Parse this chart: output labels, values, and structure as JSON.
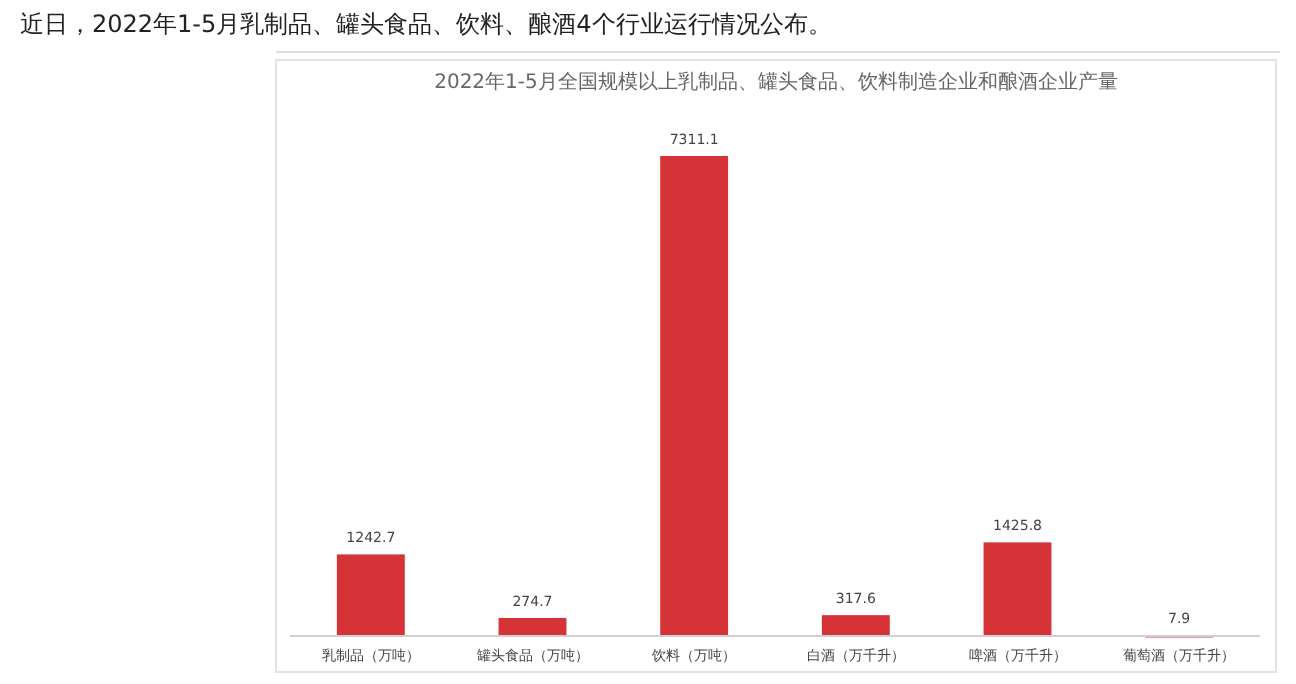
{
  "chart_data": {
    "type": "bar",
    "title": "2022年1-5月全国规模以上乳制品、罐头食品、饮料制造企业和酿酒企业产量",
    "annotations": [
      "近日，2022年1-5月乳制品、罐头食品、饮料、酿酒4个行业运行情况公布。"
    ],
    "categories": [
      "乳制品（万吨）",
      "罐头食品（万吨）",
      "饮料（万吨）",
      "白酒（万千升）",
      "啤酒（万千升）",
      "葡萄酒（万千升）"
    ],
    "values": [
      1242.7,
      274.7,
      7311.1,
      317.6,
      1425.8,
      7.9
    ],
    "color": "#d63338",
    "data_labels": true,
    "grid": false
  }
}
